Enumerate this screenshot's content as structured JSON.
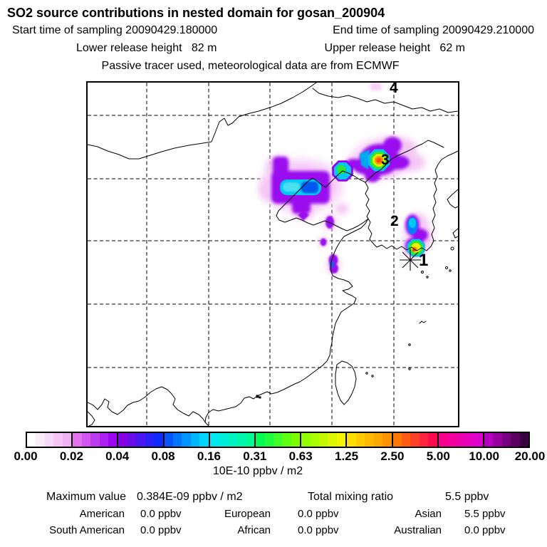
{
  "header": {
    "title": "SO2 source contributions in nested domain for gosan_200904",
    "start_time": "Start time of sampling 20090429.180000",
    "end_time": "End time of sampling 20090429.210000",
    "lower_release": "Lower release height   82 m",
    "upper_release": "Upper release height   62 m",
    "tracer_note": "Passive tracer used, meteorological data are from ECMWF"
  },
  "map": {
    "source_labels": [
      {
        "text": "1"
      },
      {
        "text": "2"
      },
      {
        "text": "3"
      },
      {
        "text": "4"
      }
    ]
  },
  "colorbar": {
    "boundaries": [
      "0.00",
      "0.02",
      "0.04",
      "0.08",
      "0.16",
      "0.31",
      "0.63",
      "1.25",
      "2.50",
      "5.00",
      "10.00",
      "20.00"
    ],
    "unit": "10E-10 ppbv / m2",
    "segments": [
      {
        "from": "#FFFFFF",
        "to": "#F0B2F2"
      },
      {
        "from": "#E272EE",
        "to": "#9A05F2"
      },
      {
        "from": "#8303E3",
        "to": "#0D2BFF"
      },
      {
        "from": "#0655FF",
        "to": "#00D5FF"
      },
      {
        "from": "#00E9F0",
        "to": "#00FA96"
      },
      {
        "from": "#00FF55",
        "to": "#7DFF00"
      },
      {
        "from": "#93FF00",
        "to": "#F4F400"
      },
      {
        "from": "#FFDF00",
        "to": "#FF9300"
      },
      {
        "from": "#FF7600",
        "to": "#FF0A50"
      },
      {
        "from": "#F8008C",
        "to": "#DD00CC"
      },
      {
        "from": "#B400BE",
        "to": "#3A0040"
      }
    ]
  },
  "stats": {
    "max_label": "Maximum value",
    "max_value": "0.384E-09 ppbv / m2",
    "total_label": "Total mixing ratio",
    "total_value": "5.5 ppbv",
    "regions": [
      {
        "name": "American",
        "value": "0.0 ppbv"
      },
      {
        "name": "European",
        "value": "0.0 ppbv"
      },
      {
        "name": "Asian",
        "value": "5.5 ppbv"
      },
      {
        "name": "South American",
        "value": "0.0 ppbv"
      },
      {
        "name": "African",
        "value": "0.0 ppbv"
      },
      {
        "name": "Australian",
        "value": "0.0 ppbv"
      }
    ]
  }
}
